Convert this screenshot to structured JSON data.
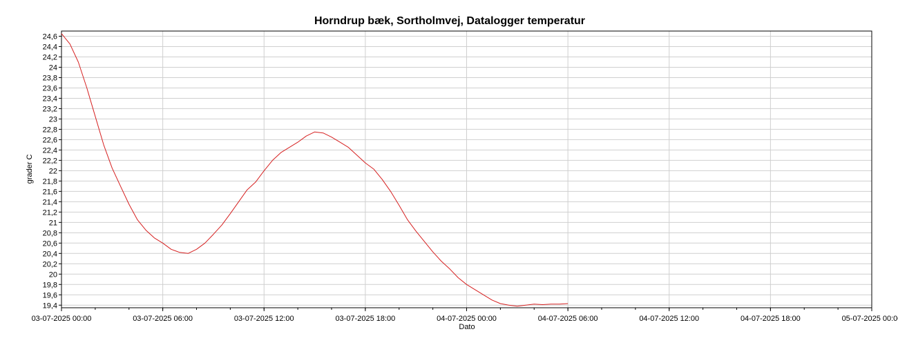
{
  "chart_data": {
    "type": "line",
    "title": "Horndrup bæk, Sortholmvej, Datalogger temperatur",
    "xlabel": "Dato",
    "ylabel": "grader C",
    "x_unit": "hours",
    "xlim_labels": [
      "03-07-2025 00:00",
      "05-07-2025 00:00"
    ],
    "ylim": [
      19.35,
      24.7
    ],
    "grid": true,
    "legend": "none",
    "line_color": "#d62020",
    "x_ticks": [
      {
        "label": "03-07-2025 00:00"
      },
      {
        "label": "03-07-2025 06:00"
      },
      {
        "label": "03-07-2025 12:00"
      },
      {
        "label": "03-07-2025 18:00"
      },
      {
        "label": "04-07-2025 00:00"
      },
      {
        "label": "04-07-2025 06:00"
      },
      {
        "label": "04-07-2025 12:00"
      },
      {
        "label": "04-07-2025 18:00"
      },
      {
        "label": "05-07-2025 00:00"
      }
    ],
    "y_ticks": [
      "19,4",
      "19,6",
      "19,8",
      "20",
      "20,2",
      "20,4",
      "20,6",
      "20,8",
      "21",
      "21,2",
      "21,4",
      "21,6",
      "21,8",
      "22",
      "22,2",
      "22,4",
      "22,6",
      "22,8",
      "23",
      "23,2",
      "23,4",
      "23,6",
      "23,8",
      "24",
      "24,2",
      "24,4",
      "24,6"
    ],
    "series": [
      {
        "x": [
          "03-07-2025 00:00",
          "03-07-2025 00:30",
          "03-07-2025 01:00",
          "03-07-2025 01:30",
          "03-07-2025 02:00",
          "03-07-2025 02:30",
          "03-07-2025 03:00",
          "03-07-2025 03:30",
          "03-07-2025 04:00",
          "03-07-2025 04:30",
          "03-07-2025 05:00",
          "03-07-2025 05:30",
          "03-07-2025 06:00",
          "03-07-2025 06:30",
          "03-07-2025 07:00",
          "03-07-2025 07:30",
          "03-07-2025 08:00",
          "03-07-2025 08:30",
          "03-07-2025 09:00",
          "03-07-2025 09:30",
          "03-07-2025 10:00",
          "03-07-2025 10:30",
          "03-07-2025 11:00",
          "03-07-2025 11:30",
          "03-07-2025 12:00",
          "03-07-2025 12:30",
          "03-07-2025 13:00",
          "03-07-2025 13:30",
          "03-07-2025 14:00",
          "03-07-2025 14:30",
          "03-07-2025 15:00",
          "03-07-2025 15:30",
          "03-07-2025 16:00",
          "03-07-2025 16:30",
          "03-07-2025 17:00",
          "03-07-2025 17:30",
          "03-07-2025 18:00",
          "03-07-2025 18:30",
          "03-07-2025 19:00",
          "03-07-2025 19:30",
          "03-07-2025 20:00",
          "03-07-2025 20:30",
          "03-07-2025 21:00",
          "03-07-2025 21:30",
          "03-07-2025 22:00",
          "03-07-2025 22:30",
          "03-07-2025 23:00",
          "03-07-2025 23:30",
          "04-07-2025 00:00",
          "04-07-2025 00:30",
          "04-07-2025 01:00",
          "04-07-2025 01:30",
          "04-07-2025 02:00",
          "04-07-2025 02:30",
          "04-07-2025 03:00",
          "04-07-2025 03:30",
          "04-07-2025 04:00",
          "04-07-2025 04:30",
          "04-07-2025 05:00",
          "04-07-2025 05:30",
          "04-07-2025 06:00"
        ],
        "values": [
          24.65,
          24.45,
          24.1,
          23.6,
          23.05,
          22.5,
          22.05,
          21.7,
          21.35,
          21.05,
          20.85,
          20.7,
          20.6,
          20.48,
          20.42,
          20.4,
          20.48,
          20.6,
          20.77,
          20.95,
          21.17,
          21.4,
          21.63,
          21.78,
          22.0,
          22.2,
          22.35,
          22.45,
          22.55,
          22.67,
          22.75,
          22.73,
          22.65,
          22.55,
          22.45,
          22.3,
          22.15,
          22.03,
          21.83,
          21.6,
          21.33,
          21.05,
          20.83,
          20.63,
          20.43,
          20.25,
          20.1,
          19.93,
          19.8,
          19.7,
          19.6,
          19.5,
          19.43,
          19.4,
          19.38,
          19.4,
          19.42,
          19.41,
          19.42,
          19.42,
          19.43
        ]
      }
    ]
  }
}
